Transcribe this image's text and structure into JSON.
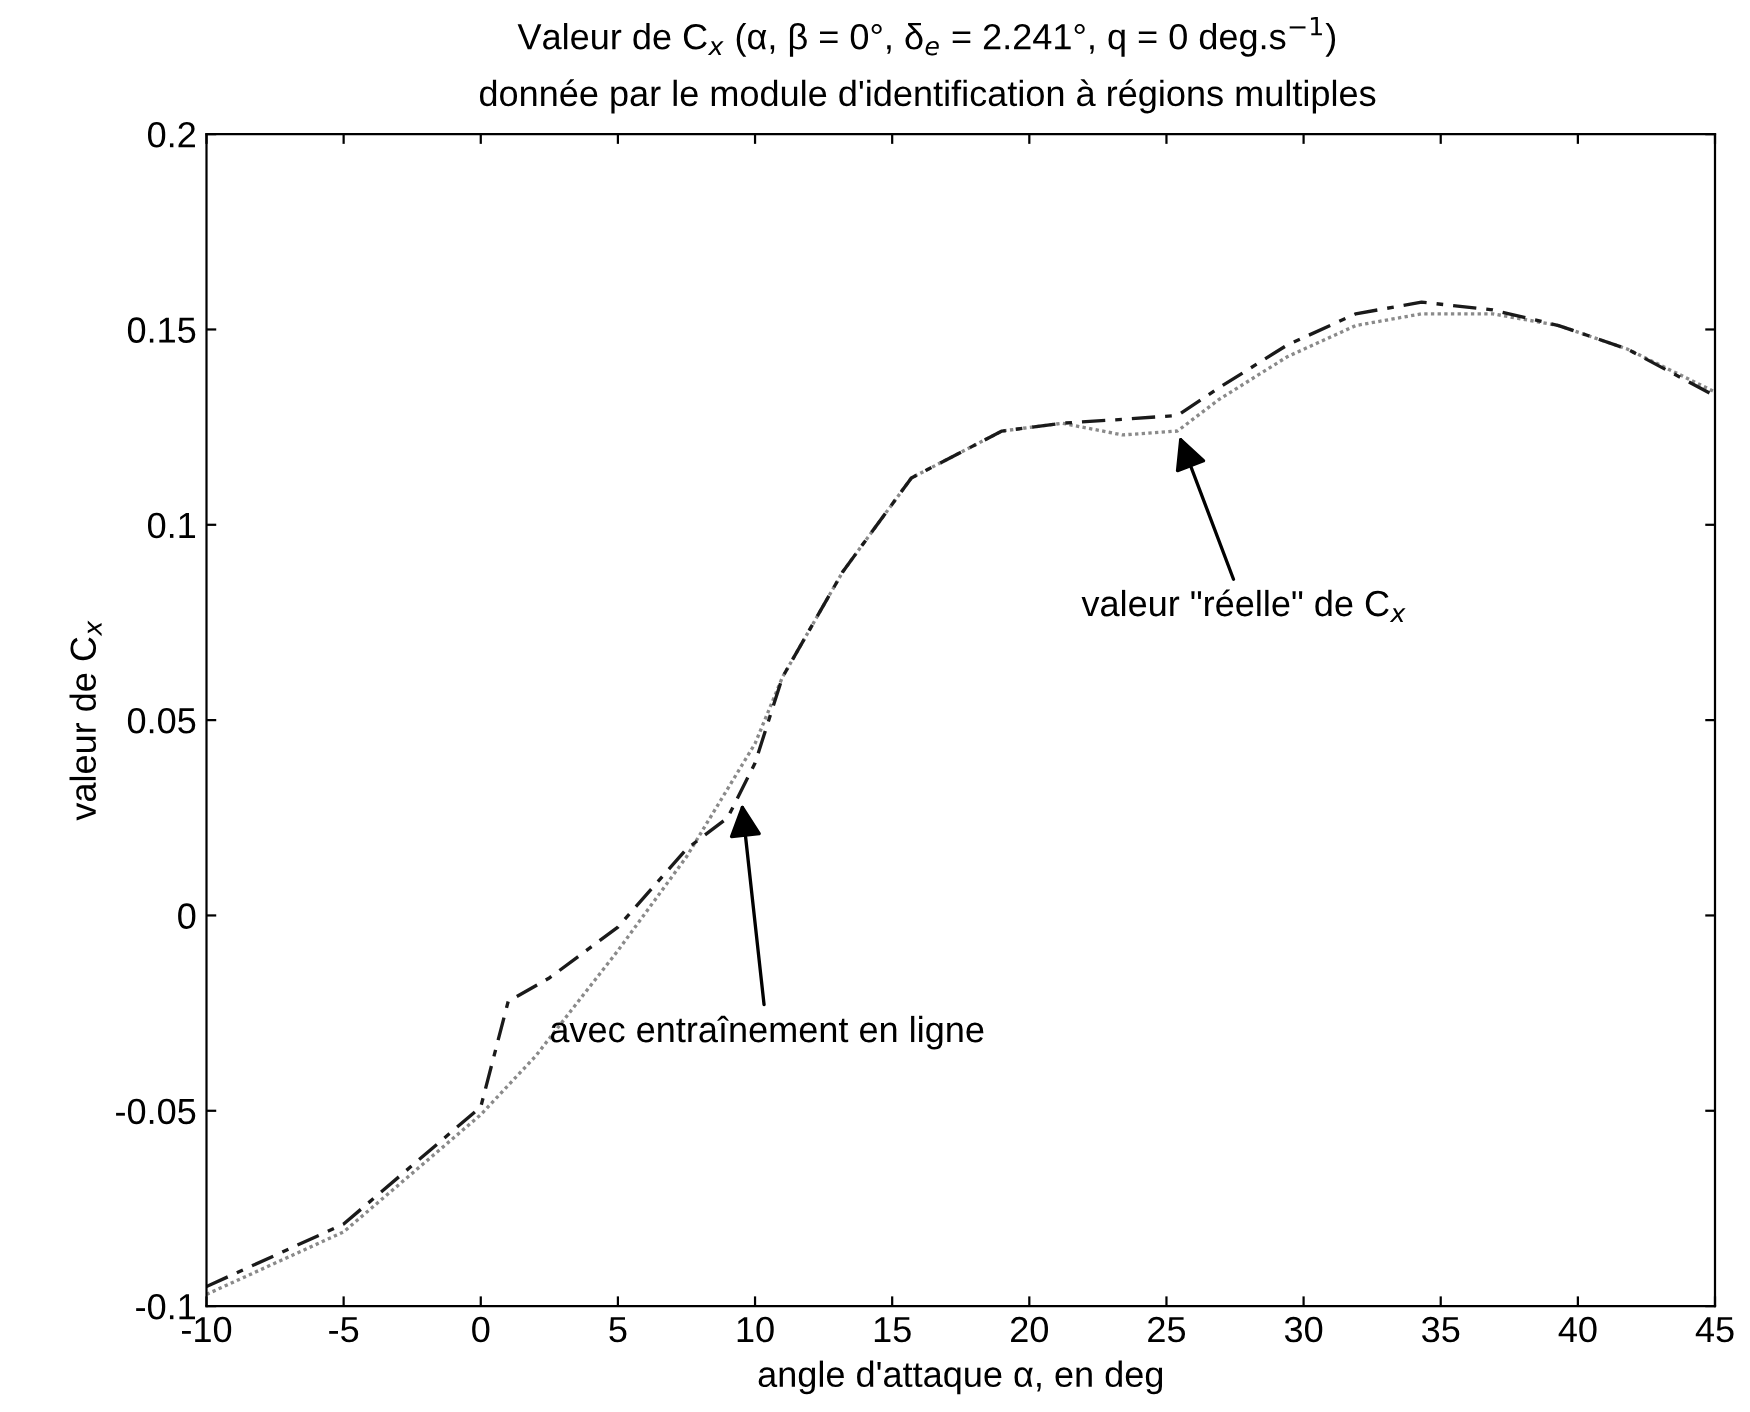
{
  "chart_data": {
    "type": "line",
    "title": "Valeur de C$_{x}$ (α, β = 0°, δ$_{e}$ = 2.241°, q = 0 deg.s$^{−1}$)",
    "subtitle": "donnée par le module d'identification à régions multiples",
    "xlabel": "angle d'attaque α, en deg",
    "ylabel": "valeur de C$_{x}$",
    "xlim": [
      -10,
      45
    ],
    "xticks": [
      -10,
      -5,
      0,
      5,
      10,
      15,
      20,
      25,
      30,
      35,
      40,
      45
    ],
    "ylim": [
      -0.1,
      0.2
    ],
    "yticks": [
      -0.1,
      -0.05,
      0,
      0.05,
      0.1,
      0.15,
      0.2
    ],
    "grid": false,
    "legend": false,
    "series": [
      {
        "color": "#8a8a8a",
        "line_style": "dotted",
        "x": [
          -10,
          -5,
          0,
          2,
          5,
          7.5,
          10,
          11,
          13.2,
          15.7,
          19,
          21.2,
          23.4,
          25.4,
          26.9,
          29.4,
          31.9,
          34.3,
          36.9,
          39.3,
          41.8,
          45
        ],
        "values": [
          -0.097,
          -0.081,
          -0.051,
          -0.036,
          -0.009,
          0.015,
          0.044,
          0.061,
          0.088,
          0.112,
          0.124,
          0.126,
          0.123,
          0.124,
          0.132,
          0.143,
          0.151,
          0.154,
          0.154,
          0.151,
          0.145,
          0.134
        ]
      },
      {
        "color": "#1a1a1a",
        "line_style": "dashed",
        "x": [
          -10,
          -5,
          0,
          1,
          2.5,
          5,
          7.5,
          9,
          10,
          11,
          13.2,
          15.7,
          19,
          21.2,
          23.4,
          25.4,
          26.9,
          29.4,
          31.9,
          34.3,
          36.9,
          39.3,
          41.8,
          45
        ],
        "values": [
          -0.095,
          -0.079,
          -0.049,
          -0.022,
          -0.016,
          -0.003,
          0.017,
          0.025,
          0.039,
          0.061,
          0.088,
          0.112,
          0.124,
          0.126,
          0.127,
          0.128,
          0.135,
          0.146,
          0.154,
          0.157,
          0.155,
          0.151,
          0.145,
          0.133
        ]
      }
    ],
    "annotations": [
      {
        "text": "valeur \"réelle\" de C$_{x}$",
        "x": 25.4,
        "y": 0.124
      },
      {
        "text": "avec entraînement en ligne",
        "x": 9.5,
        "y": 0.03
      }
    ]
  }
}
